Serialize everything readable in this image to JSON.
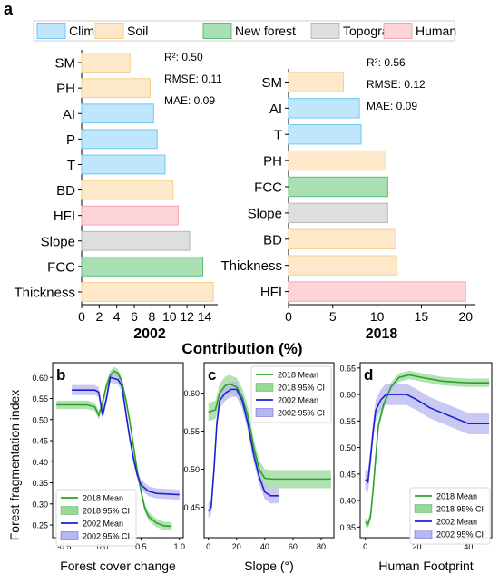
{
  "figure": {
    "panel_a_label": "a",
    "shared_x_label": "Contribution (%)",
    "shared_y_label": "Forest fragmentation index",
    "legend": [
      {
        "name": "Climate",
        "fill": "#bfe6fb",
        "stroke": "#6fc7f2"
      },
      {
        "name": "Soil",
        "fill": "#fde9c9",
        "stroke": "#f6cf91"
      },
      {
        "name": "New forest",
        "fill": "#a8e0b4",
        "stroke": "#5ebc74"
      },
      {
        "name": "Topography",
        "fill": "#dedede",
        "stroke": "#b9b9b9"
      },
      {
        "name": "Human",
        "fill": "#fdd5d8",
        "stroke": "#f4a5ab"
      }
    ]
  },
  "chart_data": [
    {
      "type": "bar",
      "orientation": "horizontal",
      "title": "2002",
      "categories": [
        "SM",
        "PH",
        "AI",
        "P",
        "T",
        "BD",
        "HFI",
        "Slope",
        "FCC",
        "Thickness"
      ],
      "groups": [
        "Soil",
        "Soil",
        "Climate",
        "Climate",
        "Climate",
        "Soil",
        "Human",
        "Topography",
        "New forest",
        "Soil"
      ],
      "values": [
        5.5,
        7.8,
        8.2,
        8.6,
        9.5,
        10.4,
        11.0,
        12.3,
        13.8,
        15.0
      ],
      "xlim": [
        0,
        15.5
      ],
      "xticks": [
        0,
        2,
        4,
        6,
        8,
        10,
        12,
        14
      ],
      "metrics": [
        "R²: 0.50",
        "RMSE: 0.11",
        "MAE: 0.09"
      ]
    },
    {
      "type": "bar",
      "orientation": "horizontal",
      "title": "2018",
      "categories": [
        "SM",
        "AI",
        "T",
        "PH",
        "FCC",
        "Slope",
        "BD",
        "Thickness",
        "HFI"
      ],
      "groups": [
        "Soil",
        "Climate",
        "Climate",
        "Soil",
        "New forest",
        "Topography",
        "Soil",
        "Soil",
        "Human"
      ],
      "values": [
        6.2,
        8.0,
        8.2,
        11.0,
        11.2,
        11.2,
        12.1,
        12.2,
        20.0
      ],
      "xlim": [
        0,
        21
      ],
      "xticks": [
        0,
        5,
        10,
        15,
        20
      ],
      "metrics": [
        "R²: 0.56",
        "RMSE: 0.12",
        "MAE: 0.09"
      ]
    },
    {
      "type": "line",
      "panel": "b",
      "xlabel": "Forest cover  change",
      "xlim": [
        -0.65,
        1.05
      ],
      "ylim": [
        0.22,
        0.635
      ],
      "xticks": [
        -0.5,
        0.0,
        0.5,
        1.0
      ],
      "yticks": [
        0.25,
        0.3,
        0.35,
        0.4,
        0.45,
        0.5,
        0.55,
        0.6
      ],
      "legend_position": "lower-left",
      "series": [
        {
          "name": "2018 Mean",
          "color": "#2ca02c",
          "ci_color": "#98d898",
          "ci": 0.01,
          "points": [
            [
              -0.6,
              0.535
            ],
            [
              -0.2,
              0.535
            ],
            [
              -0.1,
              0.53
            ],
            [
              -0.05,
              0.51
            ],
            [
              0.0,
              0.54
            ],
            [
              0.05,
              0.58
            ],
            [
              0.1,
              0.605
            ],
            [
              0.15,
              0.615
            ],
            [
              0.2,
              0.61
            ],
            [
              0.25,
              0.59
            ],
            [
              0.3,
              0.55
            ],
            [
              0.35,
              0.5
            ],
            [
              0.4,
              0.44
            ],
            [
              0.45,
              0.38
            ],
            [
              0.5,
              0.33
            ],
            [
              0.55,
              0.29
            ],
            [
              0.6,
              0.27
            ],
            [
              0.7,
              0.255
            ],
            [
              0.8,
              0.248
            ],
            [
              0.9,
              0.247
            ]
          ]
        },
        {
          "name": "2002 Mean",
          "color": "#1f1fd6",
          "ci_color": "#b7b7f0",
          "ci": 0.012,
          "points": [
            [
              -0.4,
              0.57
            ],
            [
              -0.2,
              0.57
            ],
            [
              -0.1,
              0.57
            ],
            [
              -0.05,
              0.565
            ],
            [
              0.0,
              0.51
            ],
            [
              0.05,
              0.55
            ],
            [
              0.1,
              0.6
            ],
            [
              0.2,
              0.595
            ],
            [
              0.25,
              0.58
            ],
            [
              0.3,
              0.52
            ],
            [
              0.35,
              0.46
            ],
            [
              0.4,
              0.41
            ],
            [
              0.45,
              0.37
            ],
            [
              0.5,
              0.345
            ],
            [
              0.6,
              0.33
            ],
            [
              0.7,
              0.325
            ],
            [
              1.0,
              0.322
            ]
          ]
        }
      ]
    },
    {
      "type": "line",
      "panel": "c",
      "xlabel": "Slope (°)",
      "xlim": [
        -3,
        89
      ],
      "ylim": [
        0.41,
        0.64
      ],
      "xticks": [
        0,
        20,
        40,
        60,
        80
      ],
      "yticks": [
        0.45,
        0.5,
        0.55,
        0.6
      ],
      "legend_position": "top-right",
      "series": [
        {
          "name": "2018 Mean",
          "color": "#2ca02c",
          "ci_color": "#98d898",
          "ci": 0.012,
          "points": [
            [
              0,
              0.575
            ],
            [
              5,
              0.578
            ],
            [
              8,
              0.6
            ],
            [
              12,
              0.61
            ],
            [
              15,
              0.612
            ],
            [
              20,
              0.608
            ],
            [
              24,
              0.595
            ],
            [
              28,
              0.57
            ],
            [
              32,
              0.53
            ],
            [
              36,
              0.5
            ],
            [
              40,
              0.488
            ],
            [
              45,
              0.487
            ],
            [
              87,
              0.487
            ]
          ]
        },
        {
          "name": "2002 Mean",
          "color": "#1f1fd6",
          "ci_color": "#b7b7f0",
          "ci": 0.01,
          "points": [
            [
              0,
              0.445
            ],
            [
              2,
              0.45
            ],
            [
              4,
              0.5
            ],
            [
              6,
              0.56
            ],
            [
              8,
              0.59
            ],
            [
              12,
              0.6
            ],
            [
              16,
              0.605
            ],
            [
              20,
              0.605
            ],
            [
              24,
              0.59
            ],
            [
              28,
              0.56
            ],
            [
              32,
              0.52
            ],
            [
              36,
              0.49
            ],
            [
              40,
              0.47
            ],
            [
              44,
              0.465
            ],
            [
              50,
              0.465
            ]
          ]
        }
      ]
    },
    {
      "type": "line",
      "panel": "d",
      "xlabel": "Human Footprint",
      "xlim": [
        -2,
        49
      ],
      "ylim": [
        0.33,
        0.66
      ],
      "xticks": [
        0,
        20,
        40
      ],
      "yticks": [
        0.35,
        0.4,
        0.45,
        0.5,
        0.55,
        0.6,
        0.65
      ],
      "legend_position": "lower-right",
      "series": [
        {
          "name": "2018 Mean",
          "color": "#2ca02c",
          "ci_color": "#98d898",
          "ci": 0.008,
          "points": [
            [
              0,
              0.36
            ],
            [
              1,
              0.355
            ],
            [
              2,
              0.37
            ],
            [
              3,
              0.42
            ],
            [
              4,
              0.48
            ],
            [
              5,
              0.54
            ],
            [
              7,
              0.58
            ],
            [
              10,
              0.615
            ],
            [
              13,
              0.632
            ],
            [
              17,
              0.637
            ],
            [
              22,
              0.632
            ],
            [
              30,
              0.625
            ],
            [
              40,
              0.622
            ],
            [
              48,
              0.622
            ]
          ]
        },
        {
          "name": "2002 Mean",
          "color": "#1f1fd6",
          "ci_color": "#b7b7f0",
          "ci": 0.02,
          "points": [
            [
              0,
              0.44
            ],
            [
              1,
              0.435
            ],
            [
              2,
              0.48
            ],
            [
              3,
              0.53
            ],
            [
              4,
              0.57
            ],
            [
              6,
              0.59
            ],
            [
              8,
              0.6
            ],
            [
              12,
              0.6
            ],
            [
              16,
              0.6
            ],
            [
              20,
              0.59
            ],
            [
              25,
              0.575
            ],
            [
              30,
              0.565
            ],
            [
              35,
              0.555
            ],
            [
              40,
              0.545
            ],
            [
              48,
              0.545
            ]
          ]
        }
      ]
    }
  ]
}
